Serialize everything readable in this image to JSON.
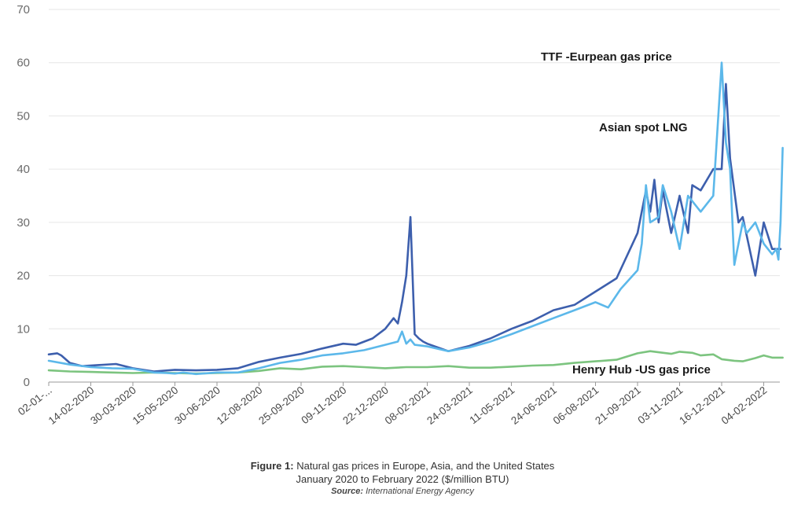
{
  "chart_data": {
    "type": "line",
    "title": "",
    "xlabel": "",
    "ylabel": "",
    "ylim": [
      0,
      70
    ],
    "yticks": [
      0,
      10,
      20,
      30,
      40,
      50,
      60,
      70
    ],
    "grid": "horizontal",
    "x_tick_labels": [
      "02-01-...",
      "14-02-2020",
      "30-03-2020",
      "15-05-2020",
      "30-06-2020",
      "12-08-2020",
      "25-09-2020",
      "09-11-2020",
      "22-12-2020",
      "08-02-2021",
      "24-03-2021",
      "11-05-2021",
      "24-06-2021",
      "06-08-2021",
      "21-09-2021",
      "03-11-2021",
      "16-12-2021",
      "04-02-2022"
    ],
    "x_tick_positions": [
      0,
      1,
      2,
      3,
      4,
      5,
      6,
      7,
      8,
      9,
      10,
      11,
      12,
      13,
      14,
      15,
      16,
      17
    ],
    "x_range": [
      0,
      17.5
    ],
    "series": [
      {
        "name": "Asian spot LNG",
        "color": "#3d5fad",
        "x": [
          0,
          0.2,
          0.3,
          0.5,
          0.8,
          1.2,
          1.6,
          2.0,
          2.5,
          3.0,
          3.5,
          4.0,
          4.5,
          5.0,
          5.5,
          6.0,
          6.5,
          7.0,
          7.3,
          7.7,
          8.0,
          8.2,
          8.3,
          8.4,
          8.5,
          8.6,
          8.7,
          8.8,
          8.9,
          9.0,
          9.5,
          10.0,
          10.5,
          11.0,
          11.5,
          12.0,
          12.5,
          13.0,
          13.5,
          14.0,
          14.2,
          14.3,
          14.4,
          14.5,
          14.6,
          14.8,
          15.0,
          15.2,
          15.3,
          15.5,
          15.8,
          16.0,
          16.1,
          16.2,
          16.4,
          16.5,
          16.8,
          17.0,
          17.2,
          17.4
        ],
        "values": [
          5.2,
          5.4,
          5.0,
          3.6,
          3.0,
          3.2,
          3.4,
          2.6,
          2.0,
          2.3,
          2.2,
          2.3,
          2.6,
          3.8,
          4.6,
          5.3,
          6.3,
          7.2,
          7.0,
          8.2,
          10.0,
          12.0,
          11.0,
          15.0,
          20.0,
          31.0,
          9.0,
          8.2,
          7.6,
          7.2,
          5.8,
          6.8,
          8.2,
          10.0,
          11.5,
          13.5,
          14.5,
          17.0,
          19.5,
          28.0,
          36.0,
          32.0,
          38.0,
          30.0,
          36.0,
          28.0,
          35.0,
          28.0,
          37.0,
          36.0,
          40.0,
          40.0,
          56.0,
          42.0,
          30.0,
          31.0,
          20.0,
          30.0,
          25.0,
          25.0
        ]
      },
      {
        "name": "TTF -Eurpean gas price",
        "color": "#5cb8ea",
        "x": [
          0,
          0.5,
          1.0,
          1.5,
          2.0,
          2.5,
          2.8,
          3.0,
          3.2,
          3.5,
          4.0,
          4.5,
          5.0,
          5.5,
          6.0,
          6.5,
          7.0,
          7.5,
          8.0,
          8.3,
          8.4,
          8.5,
          8.6,
          8.7,
          9.0,
          9.5,
          10.0,
          10.5,
          11.0,
          11.5,
          12.0,
          12.5,
          13.0,
          13.3,
          13.6,
          14.0,
          14.1,
          14.2,
          14.3,
          14.5,
          14.6,
          14.8,
          15.0,
          15.2,
          15.5,
          15.8,
          16.0,
          16.1,
          16.2,
          16.3,
          16.4,
          16.5,
          16.6,
          16.8,
          17.0,
          17.2,
          17.3,
          17.35,
          17.4,
          17.45
        ],
        "values": [
          4.0,
          3.3,
          2.8,
          2.6,
          2.5,
          1.8,
          1.7,
          1.6,
          1.8,
          1.5,
          1.8,
          1.8,
          2.6,
          3.6,
          4.2,
          5.0,
          5.4,
          6.0,
          7.0,
          7.6,
          9.5,
          7.2,
          8.0,
          7.0,
          6.7,
          5.8,
          6.5,
          7.6,
          9.0,
          10.5,
          12.0,
          13.5,
          15.0,
          14.0,
          17.5,
          21.0,
          26.0,
          37.0,
          30.0,
          31.0,
          37.0,
          32.0,
          25.0,
          35.0,
          32.0,
          35.0,
          60.0,
          45.0,
          40.0,
          22.0,
          26.0,
          30.0,
          28.0,
          30.0,
          26.0,
          24.0,
          25.0,
          23.0,
          30.0,
          44.0
        ]
      },
      {
        "name": "Henry Hub -US gas price",
        "color": "#7cc47f",
        "x": [
          0,
          0.5,
          1.0,
          1.5,
          2.0,
          2.5,
          3.0,
          3.5,
          4.0,
          4.5,
          5.0,
          5.5,
          6.0,
          6.5,
          7.0,
          7.5,
          8.0,
          8.5,
          9.0,
          9.5,
          10.0,
          10.5,
          11.0,
          11.5,
          12.0,
          12.5,
          13.0,
          13.5,
          14.0,
          14.3,
          14.5,
          14.8,
          15.0,
          15.3,
          15.5,
          15.8,
          16.0,
          16.3,
          16.5,
          16.8,
          17.0,
          17.2,
          17.45
        ],
        "values": [
          2.2,
          2.0,
          1.9,
          1.8,
          1.7,
          1.8,
          1.7,
          1.6,
          1.7,
          1.8,
          2.1,
          2.6,
          2.4,
          2.9,
          3.0,
          2.8,
          2.6,
          2.8,
          2.8,
          3.0,
          2.7,
          2.7,
          2.9,
          3.1,
          3.2,
          3.6,
          3.9,
          4.2,
          5.4,
          5.8,
          5.6,
          5.3,
          5.7,
          5.5,
          5.0,
          5.2,
          4.3,
          4.0,
          3.9,
          4.5,
          5.0,
          4.6,
          4.6
        ]
      }
    ],
    "annotations": [
      {
        "text": "TTF -Eurpean gas price",
        "series": "TTF -Eurpean gas price"
      },
      {
        "text": "Asian spot LNG",
        "series": "Asian spot LNG"
      },
      {
        "text": "Henry Hub -US gas price",
        "series": "Henry Hub -US gas price"
      }
    ]
  },
  "caption": {
    "figure_label": "Figure 1:",
    "line1_rest": " Natural gas prices in Europe, Asia, and the United States",
    "line2": "January 2020 to February 2022 ($/million BTU)",
    "source_label": "Source:",
    "source_text": " International Energy Agency"
  }
}
